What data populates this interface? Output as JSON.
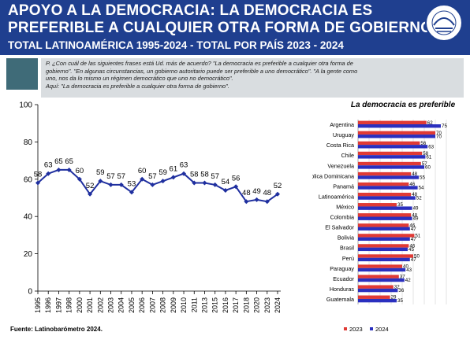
{
  "header": {
    "title_line1": "APOYO A LA DEMOCRACIA: LA DEMOCRACIA ES",
    "title_line2": "PREFERIBLE A CUALQUIER OTRA FORMA DE GOBIERNO",
    "subtitle": "TOTAL LATINOAMÉRICA 1995-2024 - TOTAL POR PAÍS 2023 - 2024",
    "logo_text": "LATINOBARÓMETRO"
  },
  "question": {
    "line1": "P. ¿Con cuál de las siguientes frases está Ud. más de acuerdo? \"La democracia es preferible a cualquier otra forma de",
    "line2": "gobierno\". \"En algunas circunstancias, un gobierno autoritario puede ser preferible a uno democrático\". \"A la gente como",
    "line3": "uno, nos da lo mismo un régimen democrático que uno no democrático\".",
    "line4": "Aquí: \"La democracia es preferible a cualquier otra forma de gobierno\"."
  },
  "source": "Fuente: Latinobarómetro 2024.",
  "colors": {
    "header": "#1f3f8f",
    "line": "#1f2f9f",
    "bar_2023": "#e03a35",
    "bar_2024": "#2a2fbf",
    "question_box": "#d9dde0",
    "question_square": "#3f6b78"
  },
  "chart_data": [
    {
      "type": "line",
      "x": [
        "1995",
        "1996",
        "1997",
        "1998",
        "2000",
        "2001",
        "2002",
        "2003",
        "2004",
        "2005",
        "2006",
        "2007",
        "2008",
        "2009",
        "2010",
        "2011",
        "2013",
        "2015",
        "2016",
        "2017",
        "2018",
        "2020",
        "2023",
        "2024"
      ],
      "values": [
        58,
        63,
        65,
        65,
        60,
        52,
        59,
        57,
        57,
        53,
        60,
        57,
        59,
        61,
        63,
        58,
        58,
        57,
        54,
        56,
        48,
        49,
        48,
        52
      ],
      "ylim": [
        0,
        100
      ],
      "yticks": [
        "0",
        "20",
        "40",
        "60",
        "80",
        "100"
      ],
      "grid": false
    },
    {
      "type": "bar",
      "orientation": "horizontal",
      "title": "La democracia es preferible",
      "categories": [
        "Argentina",
        "Uruguay",
        "Costa Rica",
        "Chile",
        "Venezuela",
        "República Dominicana",
        "Panamá",
        "Latinoamérica",
        "México",
        "Colombia",
        "El Salvador",
        "Bolivia",
        "Brasil",
        "Perú",
        "Paraguay",
        "Ecuador",
        "Honduras",
        "Guatemala"
      ],
      "series": [
        {
          "name": "2023",
          "values": [
            62,
            70,
            56,
            58,
            57,
            48,
            46,
            48,
            35,
            48,
            46,
            51,
            46,
            50,
            40,
            37,
            32,
            29
          ]
        },
        {
          "name": "2024",
          "values": [
            75,
            70,
            63,
            61,
            60,
            55,
            54,
            52,
            49,
            49,
            47,
            47,
            45,
            47,
            43,
            42,
            36,
            35
          ]
        }
      ],
      "xlim": [
        0,
        80
      ],
      "xticks": [
        "0",
        "10",
        "20",
        "30",
        "40",
        "50",
        "60",
        "70",
        "80"
      ],
      "legend_position": "bottom"
    }
  ]
}
